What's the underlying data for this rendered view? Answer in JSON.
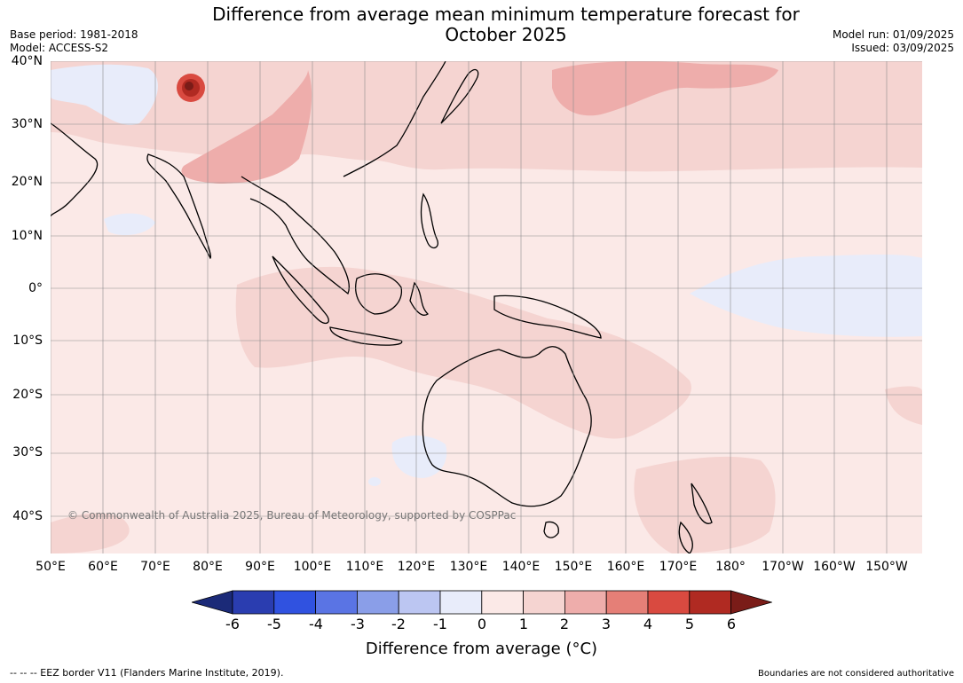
{
  "title_line1": "Difference from average mean minimum temperature forecast for",
  "title_line2": "October 2025",
  "base_period": "Base period: 1981-2018",
  "model": "Model: ACCESS-S2",
  "model_run": "Model run: 01/09/2025",
  "issued": "Issued: 03/09/2025",
  "lat_labels": [
    "40°N",
    "30°N",
    "20°N",
    "10°N",
    "0°",
    "10°S",
    "20°S",
    "30°S",
    "40°S"
  ],
  "lon_labels": [
    "50°E",
    "60°E",
    "70°E",
    "80°E",
    "90°E",
    "100°E",
    "110°E",
    "120°E",
    "130°E",
    "140°E",
    "150°E",
    "160°E",
    "170°E",
    "180°",
    "170°W",
    "160°W",
    "150°W"
  ],
  "copyright": "© Commonwealth of Australia 2025, Bureau of Meteorology, supported by COSPPac",
  "colorbar": {
    "ticks": [
      "-6",
      "-5",
      "-4",
      "-3",
      "-2",
      "-1",
      "0",
      "1",
      "2",
      "3",
      "4",
      "5",
      "6"
    ],
    "colors": [
      "#1b2a78",
      "#2a3db0",
      "#3052e0",
      "#5a74e4",
      "#8a9ee8",
      "#bcc6f2",
      "#e8ecfa",
      "#fbe9e7",
      "#f5d4d1",
      "#eeadab",
      "#e57f77",
      "#d94a40",
      "#b02a22",
      "#7a1c18"
    ],
    "label": "Difference from average (°C)"
  },
  "footer_left": "--  --  -- EEZ border V11 (Flanders Marine Institute, 2019).",
  "footer_right": "Boundaries are not considered authoritative"
}
